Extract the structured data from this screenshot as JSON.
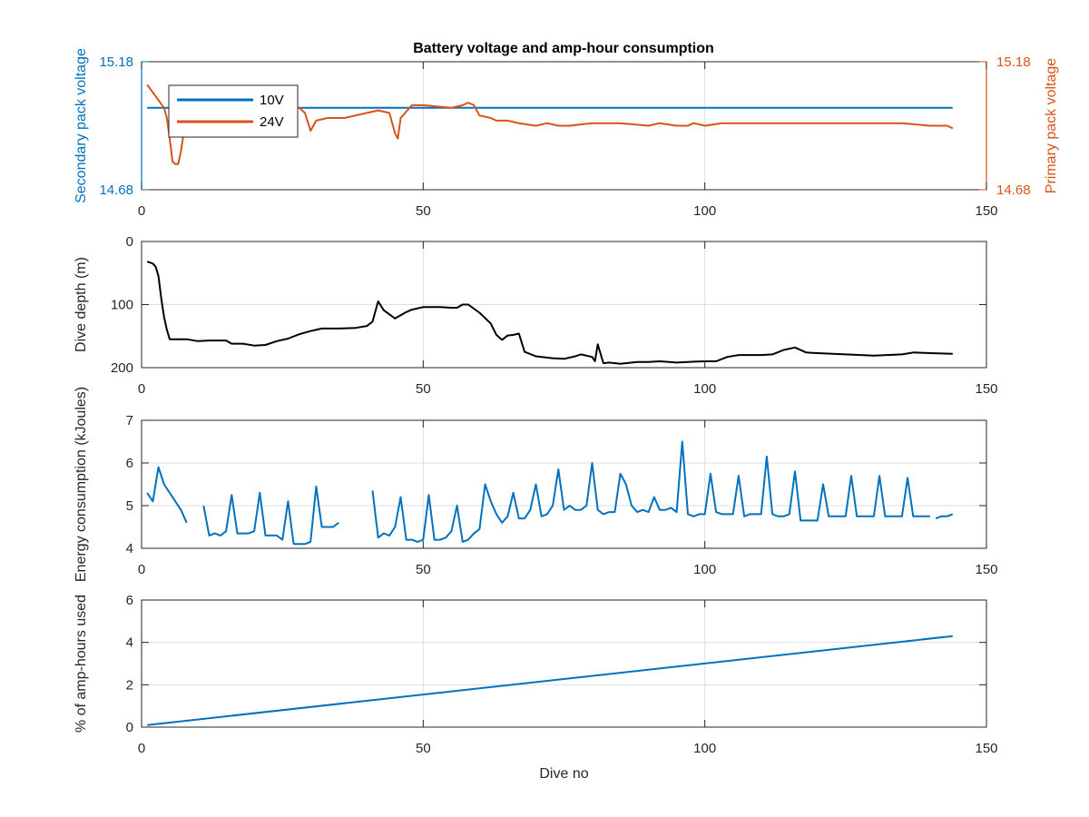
{
  "figure": {
    "title": "Battery voltage and amp-hour consumption"
  },
  "chart_data": [
    {
      "type": "line",
      "title": "Battery voltage and amp-hour consumption",
      "xlabel": "",
      "ylabel": "Secondary pack voltage",
      "ylabel_right": "Primary pack voltage",
      "xlim": [
        0,
        150
      ],
      "ylim": [
        14.68,
        15.18
      ],
      "xticks": [
        "0",
        "50",
        "100",
        "150"
      ],
      "yticks": [
        "14.68",
        "15.18"
      ],
      "yticks_right": [
        "14.68",
        "15.18"
      ],
      "grid": true,
      "legend": {
        "placement": "top-left",
        "entries": [
          "10V",
          "24V"
        ]
      },
      "colors": {
        "left_axis": "#0072BD",
        "right_axis": "#D95319"
      },
      "series": [
        {
          "name": "10V",
          "color": "#0072BD",
          "x": [
            1,
            144
          ],
          "y": [
            15.0,
            15.0
          ]
        },
        {
          "name": "24V",
          "color": "#D95319",
          "x": [
            1,
            2,
            3,
            4,
            4.5,
            5,
            5.5,
            6,
            6.5,
            7,
            8,
            10,
            12,
            15,
            20,
            25,
            28,
            29,
            30,
            31,
            33,
            36,
            40,
            42,
            44,
            45,
            45.5,
            46,
            48,
            50,
            55,
            57,
            58,
            59,
            60,
            62,
            63,
            65,
            67,
            70,
            72,
            74,
            76,
            80,
            85,
            90,
            92,
            95,
            97,
            98,
            100,
            103,
            106,
            110,
            115,
            120,
            125,
            130,
            135,
            140,
            143,
            144
          ],
          "y": [
            15.09,
            15.06,
            15.03,
            15.0,
            14.96,
            14.88,
            14.79,
            14.78,
            14.78,
            14.83,
            14.98,
            15.0,
            15.0,
            15.0,
            15.0,
            15.0,
            15.0,
            14.98,
            14.91,
            14.95,
            14.96,
            14.96,
            14.98,
            14.99,
            14.98,
            14.9,
            14.88,
            14.96,
            15.01,
            15.01,
            15.0,
            15.01,
            15.02,
            15.01,
            14.97,
            14.96,
            14.95,
            14.95,
            14.94,
            14.93,
            14.94,
            14.93,
            14.93,
            14.94,
            14.94,
            14.93,
            14.94,
            14.93,
            14.93,
            14.94,
            14.93,
            14.94,
            14.94,
            14.94,
            14.94,
            14.94,
            14.94,
            14.94,
            14.94,
            14.93,
            14.93,
            14.92
          ]
        }
      ]
    },
    {
      "type": "line",
      "title": "",
      "xlabel": "",
      "ylabel": "Dive depth (m)",
      "xlim": [
        0,
        150
      ],
      "ylim": [
        0,
        200
      ],
      "y_reversed": true,
      "xticks": [
        "0",
        "50",
        "100",
        "150"
      ],
      "yticks": [
        "0",
        "100",
        "200"
      ],
      "grid": true,
      "series": [
        {
          "color": "#000000",
          "x": [
            1,
            2,
            2.5,
            3,
            3.5,
            4,
            4.5,
            5,
            6,
            8,
            10,
            12,
            15,
            16,
            18,
            20,
            22,
            24,
            26,
            28,
            30,
            32,
            35,
            38,
            40,
            41,
            42,
            43,
            45,
            47,
            48,
            50,
            53,
            55,
            56,
            57,
            58,
            60,
            62,
            63,
            64,
            65,
            66,
            67,
            68,
            70,
            73,
            75,
            77,
            78,
            80,
            80.5,
            81,
            82,
            83,
            85,
            88,
            90,
            92,
            95,
            97,
            100,
            102,
            104,
            106,
            108,
            110,
            112,
            114,
            116,
            118,
            120,
            125,
            130,
            135,
            137,
            140,
            144
          ],
          "y": [
            32,
            35,
            40,
            55,
            90,
            120,
            140,
            155,
            155,
            155,
            158,
            157,
            157,
            162,
            162,
            165,
            164,
            158,
            154,
            147,
            142,
            138,
            138,
            137,
            134,
            127,
            95,
            109,
            122,
            112,
            108,
            104,
            104,
            105,
            105,
            100,
            100,
            113,
            130,
            148,
            156,
            149,
            148,
            146,
            175,
            182,
            185,
            186,
            182,
            179,
            183,
            190,
            163,
            193,
            192,
            194,
            191,
            191,
            190,
            192,
            191,
            190,
            190,
            183,
            180,
            180,
            180,
            179,
            172,
            168,
            176,
            177,
            179,
            181,
            179,
            176,
            177,
            178
          ]
        }
      ]
    },
    {
      "type": "line",
      "title": "",
      "xlabel": "",
      "ylabel": "Energy consumption (kJoules)",
      "xlim": [
        0,
        150
      ],
      "ylim": [
        4,
        7
      ],
      "xticks": [
        "0",
        "50",
        "100",
        "150"
      ],
      "yticks": [
        "4",
        "5",
        "6",
        "7"
      ],
      "grid": true,
      "series": [
        {
          "color": "#0072BD",
          "segments": [
            {
              "x": [
                1,
                2,
                3,
                4,
                5,
                6,
                7,
                8
              ],
              "y": [
                5.3,
                5.1,
                5.9,
                5.5,
                5.3,
                5.1,
                4.9,
                4.6
              ]
            },
            {
              "x": [
                11,
                12,
                13,
                14,
                15,
                16,
                17,
                18,
                19,
                20,
                21,
                22,
                23,
                24,
                25,
                26,
                27,
                28,
                29,
                30,
                31,
                32,
                33,
                34,
                35
              ],
              "y": [
                5.0,
                4.3,
                4.35,
                4.3,
                4.4,
                5.25,
                4.35,
                4.35,
                4.35,
                4.4,
                5.3,
                4.3,
                4.3,
                4.3,
                4.2,
                5.1,
                4.1,
                4.1,
                4.1,
                4.15,
                5.45,
                4.5,
                4.5,
                4.5,
                4.6
              ]
            },
            {
              "x": [
                41,
                42,
                43,
                44,
                45,
                46,
                47,
                48,
                49,
                50,
                51,
                52,
                53,
                54,
                55,
                56,
                57,
                58,
                59,
                60,
                61,
                62,
                63,
                64,
                65,
                66,
                67,
                68,
                69,
                70,
                71,
                72,
                73,
                74,
                75,
                76,
                77,
                78,
                79,
                80,
                81,
                82,
                83,
                84,
                85,
                86,
                87,
                88,
                89,
                90,
                91,
                92,
                93,
                94,
                95,
                96,
                97,
                98,
                99,
                100,
                101,
                102,
                103,
                104,
                105,
                106,
                107,
                108,
                109,
                110,
                111,
                112,
                113,
                114,
                115,
                116,
                117,
                118,
                119,
                120,
                121,
                122,
                123,
                124,
                125,
                126,
                127,
                128,
                129,
                130,
                131,
                132,
                133,
                134,
                135,
                136,
                137,
                138,
                139,
                140
              ],
              "y": [
                5.35,
                4.25,
                4.35,
                4.3,
                4.5,
                5.2,
                4.2,
                4.2,
                4.15,
                4.2,
                5.25,
                4.2,
                4.2,
                4.25,
                4.4,
                5.0,
                4.15,
                4.2,
                4.35,
                4.45,
                5.5,
                5.1,
                4.8,
                4.6,
                4.75,
                5.3,
                4.7,
                4.7,
                4.9,
                5.5,
                4.75,
                4.8,
                5.0,
                5.85,
                4.9,
                5.0,
                4.9,
                4.9,
                5.0,
                6.0,
                4.9,
                4.8,
                4.85,
                4.85,
                5.75,
                5.5,
                5.0,
                4.85,
                4.9,
                4.85,
                5.2,
                4.9,
                4.9,
                4.95,
                4.85,
                6.5,
                4.8,
                4.75,
                4.8,
                4.8,
                5.75,
                4.85,
                4.8,
                4.8,
                4.8,
                5.7,
                4.75,
                4.8,
                4.8,
                4.8,
                6.15,
                4.8,
                4.75,
                4.75,
                4.8,
                5.8,
                4.65,
                4.65,
                4.65,
                4.65,
                5.5,
                4.75,
                4.75,
                4.75,
                4.75,
                5.7,
                4.75,
                4.75,
                4.75,
                4.75,
                5.7,
                4.75,
                4.75,
                4.75,
                4.75,
                5.65,
                4.75,
                4.75,
                4.75,
                4.75
              ]
            },
            {
              "x": [
                141,
                142,
                143,
                144
              ],
              "y": [
                4.7,
                4.75,
                4.75,
                4.8
              ]
            }
          ]
        }
      ]
    },
    {
      "type": "line",
      "title": "",
      "xlabel": "Dive no",
      "ylabel": "% of amp-hours used",
      "xlim": [
        0,
        150
      ],
      "ylim": [
        0,
        6
      ],
      "xticks": [
        "0",
        "50",
        "100",
        "150"
      ],
      "yticks": [
        "0",
        "2",
        "4",
        "6"
      ],
      "grid": true,
      "series": [
        {
          "color": "#0072BD",
          "x": [
            1,
            144
          ],
          "y": [
            0.1,
            4.3
          ]
        }
      ]
    }
  ]
}
